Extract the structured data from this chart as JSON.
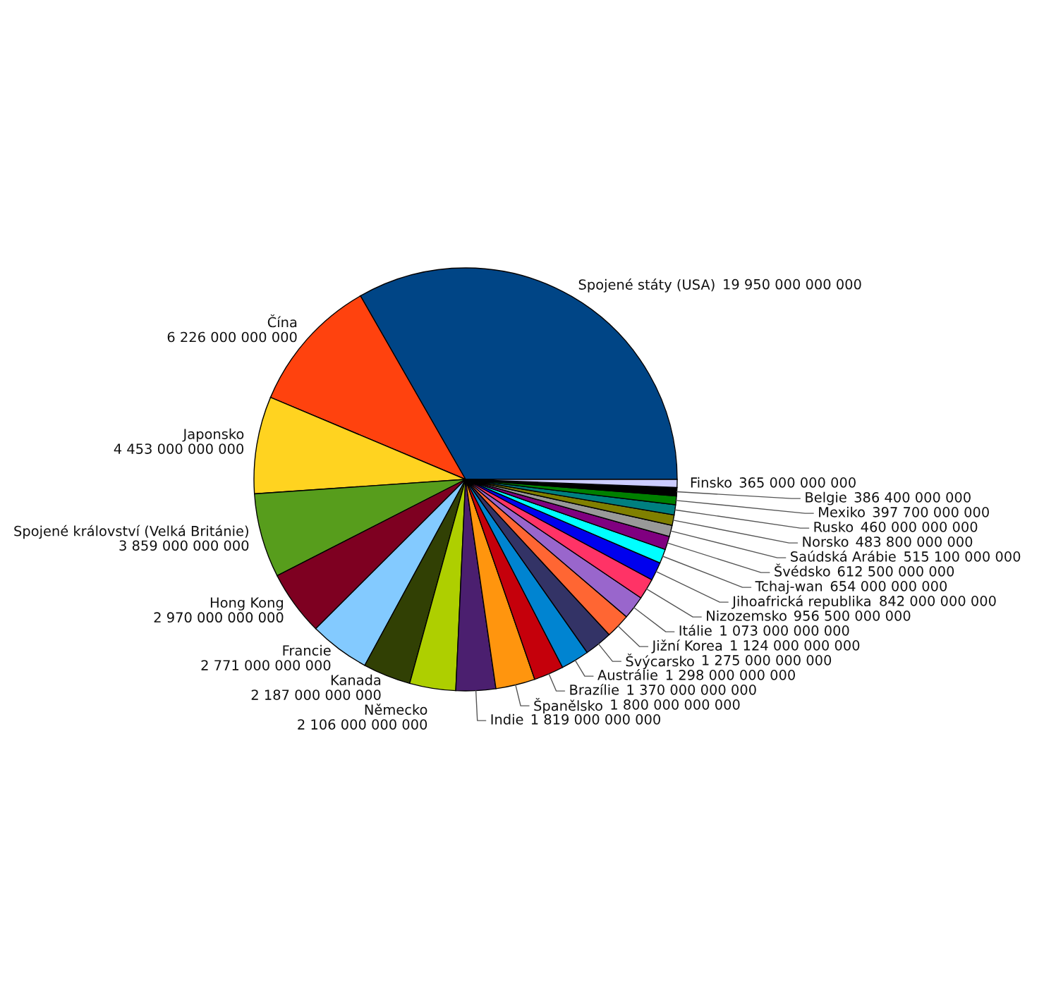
{
  "chart_data": {
    "type": "pie",
    "categories": [
      "Spojené státy (USA)",
      "Čína",
      "Japonsko",
      "Spojené království (Velká Británie)",
      "Hong Kong",
      "Francie",
      "Kanada",
      "Německo",
      "Indie",
      "Španělsko",
      "Brazílie",
      "Austrálie",
      "Švýcarsko",
      "Jižní Korea",
      "Itálie",
      "Nizozemsko",
      "Jihoafrická republika",
      "Tchaj-wan",
      "Švédsko",
      "Saúdská Arábie",
      "Norsko",
      "Rusko",
      "Mexiko",
      "Belgie",
      "Finsko"
    ],
    "values": [
      19950000000000,
      6226000000000,
      4453000000000,
      3859000000000,
      2970000000000,
      2771000000000,
      2187000000000,
      2106000000000,
      1819000000000,
      1800000000000,
      1370000000000,
      1298000000000,
      1275000000000,
      1124000000000,
      1073000000000,
      956500000000,
      842000000000,
      654000000000,
      612500000000,
      515100000000,
      483800000000,
      460000000000,
      397700000000,
      386400000000,
      365000000000
    ],
    "colors": [
      "#004586",
      "#ff420e",
      "#ffd320",
      "#579d1c",
      "#7e0021",
      "#83caff",
      "#314004",
      "#aecf00",
      "#4b1f6f",
      "#ff950e",
      "#c5000b",
      "#0084d1",
      "#333366",
      "#ff6633",
      "#9966cc",
      "#ff3366",
      "#0000ee",
      "#00ffff",
      "#800080",
      "#999999",
      "#808000",
      "#008080",
      "#008000",
      "#000000",
      "#ccccff"
    ],
    "data_labels": true
  }
}
